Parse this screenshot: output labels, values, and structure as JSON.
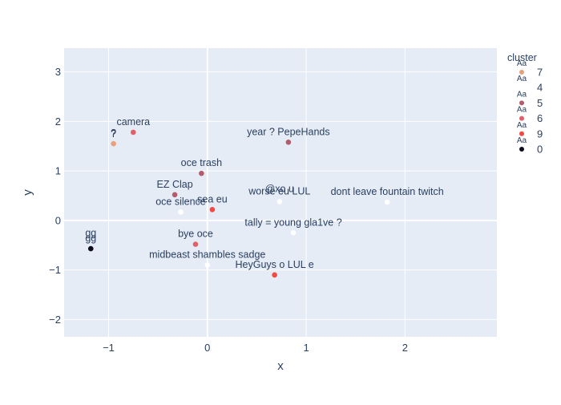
{
  "chart_data": {
    "type": "scatter",
    "xlabel": "x",
    "ylabel": "y",
    "xlim": [
      -1.45,
      2.93
    ],
    "ylim": [
      -2.35,
      3.48
    ],
    "x_ticks": [
      -1,
      0,
      1,
      2
    ],
    "y_ticks": [
      -2,
      -1,
      0,
      1,
      2,
      3
    ],
    "x_tick_labels": [
      "−1",
      "0",
      "1",
      "2"
    ],
    "y_tick_labels": [
      "−2",
      "−1",
      "0",
      "1",
      "2",
      "3"
    ],
    "grid": true,
    "background": "#E5ECF6",
    "legend": {
      "title": "cluster",
      "placement": "right",
      "symbol_label": "Aa",
      "items": [
        {
          "label": "7",
          "color": "#E8A07A"
        },
        {
          "label": "4",
          "color": "#FFFFFF"
        },
        {
          "label": "5",
          "color": "#B45C6A"
        },
        {
          "label": "6",
          "color": "#E0606A"
        },
        {
          "label": "9",
          "color": "#F24A42"
        },
        {
          "label": "0",
          "color": "#0D0A1E"
        }
      ]
    },
    "points": [
      {
        "x": -0.95,
        "y": 1.55,
        "label": "?",
        "cluster": "7",
        "color": "#E8A07A"
      },
      {
        "x": -0.75,
        "y": 1.78,
        "label": "camera",
        "cluster": "6",
        "color": "#E0606A"
      },
      {
        "x": 0.82,
        "y": 1.58,
        "label": "year ? PepeHands",
        "cluster": "5",
        "color": "#B45C6A"
      },
      {
        "x": -0.06,
        "y": 0.95,
        "label": "oce trash",
        "cluster": "5",
        "color": "#B45C6A"
      },
      {
        "x": -0.33,
        "y": 0.52,
        "label": "EZ Clap",
        "cluster": "5",
        "color": "#B45C6A"
      },
      {
        "x": 0.73,
        "y": 0.38,
        "label": "worse eu LUL",
        "cluster": "4",
        "color": "#FFFFFF"
      },
      {
        "x": 1.82,
        "y": 0.37,
        "label": "dont leave fountain twitch",
        "cluster": "4",
        "color": "#FFFFFF"
      },
      {
        "x": -0.27,
        "y": 0.17,
        "label": "oce silence",
        "cluster": "4",
        "color": "#FFFFFF"
      },
      {
        "x": 0.05,
        "y": 0.22,
        "label": "sea eu",
        "cluster": "9",
        "color": "#F24A42"
      },
      {
        "x": 0.87,
        "y": -0.25,
        "label": "tally = young gla1ve ?",
        "cluster": "4",
        "color": "#FFFFFF"
      },
      {
        "x": -0.12,
        "y": -0.48,
        "label": "bye oce",
        "cluster": "6",
        "color": "#E0606A"
      },
      {
        "x": -1.18,
        "y": -0.57,
        "label": "gg",
        "cluster": "0",
        "color": "#0D0A1E"
      },
      {
        "x": 0.0,
        "y": -0.9,
        "label": "midbeast shambles sadge",
        "cluster": "4",
        "color": "#FFFFFF"
      },
      {
        "x": 0.68,
        "y": -1.1,
        "label": "HeyGuys o LUL e",
        "cluster": "9",
        "color": "#F24A42"
      }
    ],
    "extra_labels": [
      {
        "text": "@xo u",
        "x": 0.73,
        "y": 0.57
      },
      {
        "text": "?",
        "x": -0.95,
        "y": 1.68
      },
      {
        "text": "gg",
        "x": -1.18,
        "y": -0.32
      }
    ]
  }
}
